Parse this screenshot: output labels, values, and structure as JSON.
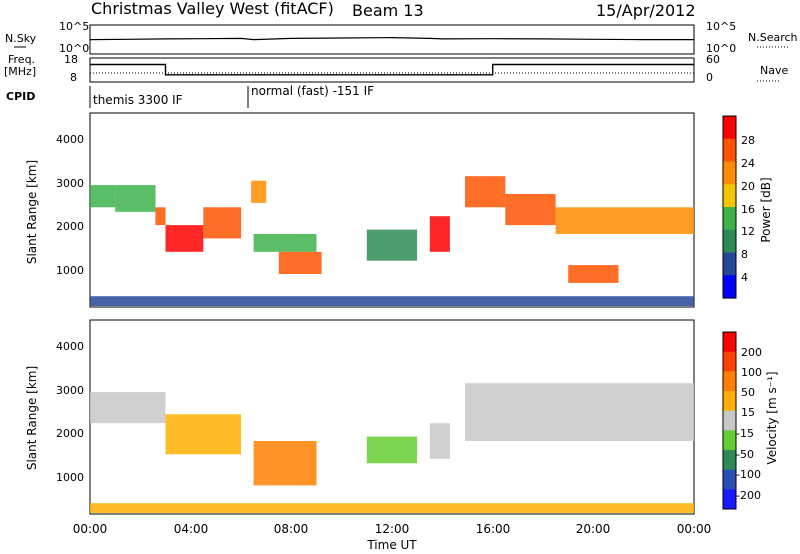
{
  "header": {
    "station": "Christmas Valley West (fitACF)",
    "beam": "Beam 13",
    "date": "15/Apr/2012"
  },
  "summary": {
    "nsky_label": "N.Sky",
    "nsearch_label": "N.Search",
    "freq_label_line1": "Freq.",
    "freq_label_line2": "[MHz]",
    "nave_label": "Nave",
    "cpid_label": "CPID",
    "noise_ticks": [
      "10^5",
      "10^0"
    ],
    "freq_ticks": [
      "18",
      "8"
    ],
    "nave_ticks": [
      "60",
      "0"
    ],
    "cpid_segments": [
      "themis 3300 IF",
      "normal (fast) -151 IF"
    ]
  },
  "axes": {
    "x_label": "Time UT",
    "x_ticks": [
      "00:00",
      "04:00",
      "08:00",
      "12:00",
      "16:00",
      "20:00",
      "00:00"
    ],
    "y_label": "Slant Range [km]",
    "y_ticks": [
      "1000",
      "2000",
      "3000",
      "4000"
    ]
  },
  "colorbars": {
    "power": {
      "label": "Power [dB]",
      "ticks": [
        "4",
        "8",
        "12",
        "16",
        "20",
        "24",
        "28"
      ],
      "colors": [
        "#0000ff",
        "#28469b",
        "#2e8b57",
        "#3cb34a",
        "#f5c400",
        "#ff8c00",
        "#ff5500",
        "#ff0000"
      ]
    },
    "velocity": {
      "label": "Velocity [m s⁻¹]",
      "ticks": [
        "200",
        "100",
        "50",
        "15",
        "-15",
        "-50",
        "-100",
        "-200"
      ],
      "colors": [
        "#1a1aff",
        "#2850b4",
        "#2e8b57",
        "#66cc33",
        "#c8c8c8",
        "#ffb000",
        "#ff8000",
        "#ff4000",
        "#ff0000"
      ]
    }
  },
  "chart_data": [
    {
      "type": "line",
      "title": "N.Sky / N.Search",
      "x_unit": "hours UT",
      "y_scale": "log",
      "ylim": [
        1,
        100000
      ],
      "series": [
        {
          "x": [
            0,
            1.5,
            3,
            4.5,
            6,
            6.5,
            8,
            10,
            12,
            13.5,
            14,
            16,
            18,
            20,
            22,
            24
          ],
          "values": [
            300,
            350,
            400,
            450,
            500,
            300,
            500,
            600,
            700,
            500,
            400,
            450,
            400,
            350,
            300,
            300
          ]
        }
      ]
    },
    {
      "type": "line",
      "title": "Freq. / Nave",
      "x_unit": "hours UT",
      "ylim": [
        8,
        18
      ],
      "series": [
        {
          "name": "Freq. [MHz]",
          "x": [
            0,
            3,
            3,
            14.9,
            14.9,
            16,
            16,
            24
          ],
          "values": [
            15.5,
            15.5,
            10.8,
            10.8,
            10.8,
            10.8,
            15.5,
            15.5
          ]
        }
      ]
    },
    {
      "type": "heatmap",
      "title": "Power [dB]",
      "x_unit": "hours UT",
      "xlim": [
        0,
        24
      ],
      "ylim": [
        180,
        4500
      ],
      "bands": [
        {
          "t0": 0.0,
          "t1": 1.0,
          "r0": 2400,
          "r1": 2900,
          "value": 12
        },
        {
          "t0": 1.0,
          "t1": 2.6,
          "r0": 2300,
          "r1": 2900,
          "value": 14
        },
        {
          "t0": 2.6,
          "t1": 3.0,
          "r0": 2000,
          "r1": 2400,
          "value": 24
        },
        {
          "t0": 3.0,
          "t1": 4.5,
          "r0": 1400,
          "r1": 2000,
          "value": 28
        },
        {
          "t0": 4.5,
          "t1": 6.0,
          "r0": 1700,
          "r1": 2400,
          "value": 26
        },
        {
          "t0": 6.4,
          "t1": 7.0,
          "r0": 2500,
          "r1": 3000,
          "value": 22
        },
        {
          "t0": 6.5,
          "t1": 9.0,
          "r0": 1400,
          "r1": 1800,
          "value": 12
        },
        {
          "t0": 7.5,
          "t1": 9.2,
          "r0": 900,
          "r1": 1400,
          "value": 26
        },
        {
          "t0": 11.0,
          "t1": 13.0,
          "r0": 1200,
          "r1": 1900,
          "value": 10
        },
        {
          "t0": 13.5,
          "t1": 14.3,
          "r0": 1400,
          "r1": 2200,
          "value": 28
        },
        {
          "t0": 14.9,
          "t1": 16.5,
          "r0": 2400,
          "r1": 3100,
          "value": 26
        },
        {
          "t0": 16.5,
          "t1": 18.5,
          "r0": 2000,
          "r1": 2700,
          "value": 24
        },
        {
          "t0": 18.5,
          "t1": 24.0,
          "r0": 1800,
          "r1": 2400,
          "value": 22
        },
        {
          "t0": 19.0,
          "t1": 21.0,
          "r0": 700,
          "r1": 1100,
          "value": 24
        },
        {
          "t0": 0.0,
          "t1": 24.0,
          "r0": 180,
          "r1": 400,
          "value": 6
        }
      ]
    },
    {
      "type": "heatmap",
      "title": "Velocity [m s⁻¹]",
      "x_unit": "hours UT",
      "xlim": [
        0,
        24
      ],
      "ylim": [
        180,
        4500
      ],
      "bands": [
        {
          "t0": 0.0,
          "t1": 3.0,
          "r0": 2200,
          "r1": 2900,
          "value": 0
        },
        {
          "t0": 3.0,
          "t1": 6.0,
          "r0": 1500,
          "r1": 2400,
          "value": -30
        },
        {
          "t0": 6.5,
          "t1": 9.0,
          "r0": 800,
          "r1": 1800,
          "value": -60
        },
        {
          "t0": 11.0,
          "t1": 13.0,
          "r0": 1300,
          "r1": 1900,
          "value": 40
        },
        {
          "t0": 13.5,
          "t1": 14.3,
          "r0": 1400,
          "r1": 2200,
          "value": 0
        },
        {
          "t0": 14.9,
          "t1": 24.0,
          "r0": 1800,
          "r1": 3100,
          "value": 0
        },
        {
          "t0": 0.0,
          "t1": 24.0,
          "r0": 180,
          "r1": 400,
          "value": -40
        }
      ]
    }
  ]
}
